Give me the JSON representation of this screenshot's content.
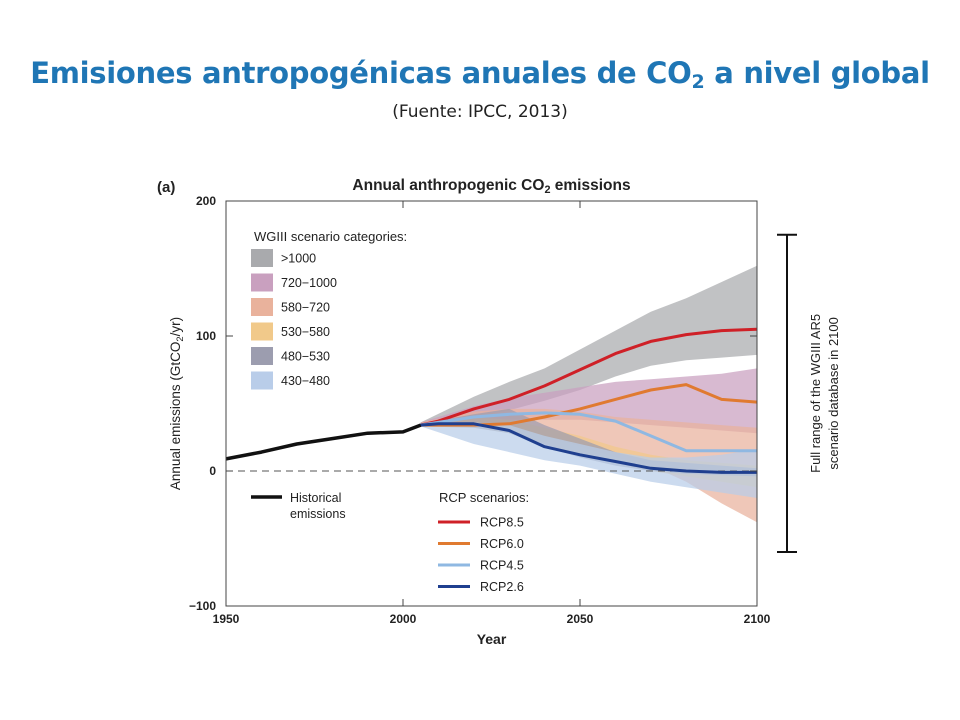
{
  "page": {
    "title_pre": "Emisiones antropogénicas anuales de CO",
    "title_sub": "2",
    "title_post": " a nivel global",
    "subtitle": "(Fuente: IPCC, 2013)"
  },
  "chart_data": {
    "type": "area",
    "panel_label": "(a)",
    "title_pre": "Annual anthropogenic CO",
    "title_sub": "2",
    "title_post": " emissions",
    "ylabel_pre": "Annual emissions (GtCO",
    "ylabel_sub": "2",
    "ylabel_post": "/yr)",
    "xlabel": "Year",
    "xlim": [
      1950,
      2100
    ],
    "ylim": [
      -100,
      200
    ],
    "x_ticks": [
      1950,
      2000,
      2050,
      2100
    ],
    "y_ticks": [
      -100,
      0,
      100,
      200
    ],
    "y_tick_labels": [
      "−100",
      "0",
      "100",
      "200"
    ],
    "zero_line": "dashed",
    "historical": {
      "name": "Historical emissions",
      "name_lines": [
        "Historical",
        "emissions"
      ],
      "color": "#111111",
      "x": [
        1950,
        1960,
        1970,
        1980,
        1990,
        2000,
        2005
      ],
      "y": [
        9,
        14,
        20,
        24,
        28,
        29,
        34
      ]
    },
    "categories_title": "WGIII scenario categories:",
    "categories": [
      {
        "name": ">1000",
        "color": "#a9aaad",
        "x": [
          2005,
          2020,
          2030,
          2040,
          2050,
          2060,
          2070,
          2080,
          2090,
          2100
        ],
        "upper": [
          36,
          55,
          66,
          76,
          90,
          104,
          118,
          128,
          140,
          152
        ],
        "lower": [
          34,
          40,
          45,
          52,
          60,
          70,
          78,
          82,
          84,
          86
        ]
      },
      {
        "name": "720−1000",
        "color": "#c9a0bf",
        "x": [
          2005,
          2020,
          2030,
          2040,
          2050,
          2060,
          2070,
          2080,
          2090,
          2100
        ],
        "upper": [
          36,
          48,
          54,
          58,
          62,
          66,
          68,
          70,
          72,
          76
        ],
        "lower": [
          34,
          38,
          38,
          38,
          38,
          36,
          34,
          32,
          30,
          28
        ]
      },
      {
        "name": "580−720",
        "color": "#e9b29c",
        "x": [
          2005,
          2020,
          2030,
          2040,
          2050,
          2060,
          2070,
          2080,
          2090,
          2100
        ],
        "upper": [
          36,
          44,
          46,
          46,
          44,
          40,
          38,
          36,
          34,
          32
        ],
        "lower": [
          33,
          34,
          32,
          26,
          18,
          10,
          4,
          -8,
          -24,
          -38
        ]
      },
      {
        "name": "530−580",
        "color": "#f1c98a",
        "x": [
          2005,
          2020,
          2030,
          2040,
          2050,
          2060,
          2070,
          2080,
          2090,
          2100
        ],
        "upper": [
          35,
          40,
          38,
          32,
          26,
          18,
          12,
          8,
          6,
          4
        ],
        "lower": [
          33,
          32,
          28,
          20,
          12,
          6,
          0,
          -4,
          -8,
          -12
        ]
      },
      {
        "name": "480−530",
        "color": "#9c9daf",
        "x": [
          2005,
          2020,
          2030,
          2040,
          2050,
          2060,
          2070,
          2080,
          2090,
          2100
        ],
        "upper": [
          35,
          42,
          46,
          34,
          24,
          14,
          8,
          6,
          4,
          2
        ],
        "lower": [
          33,
          32,
          28,
          18,
          10,
          4,
          0,
          -2,
          -3,
          -4
        ]
      },
      {
        "name": "430−480",
        "color": "#b9cde9",
        "x": [
          2005,
          2020,
          2030,
          2040,
          2050,
          2060,
          2070,
          2080,
          2090,
          2100
        ],
        "upper": [
          35,
          36,
          34,
          26,
          20,
          14,
          10,
          10,
          12,
          16
        ],
        "lower": [
          33,
          20,
          14,
          8,
          4,
          -2,
          -8,
          -12,
          -16,
          -20
        ]
      }
    ],
    "rcp_title": "RCP scenarios:",
    "rcp": [
      {
        "name": "RCP8.5",
        "color": "#cf2027",
        "x": [
          2005,
          2010,
          2020,
          2030,
          2040,
          2050,
          2060,
          2070,
          2080,
          2090,
          2100
        ],
        "y": [
          34,
          37,
          46,
          53,
          63,
          75,
          87,
          96,
          101,
          104,
          105
        ]
      },
      {
        "name": "RCP6.0",
        "color": "#e07a30",
        "x": [
          2005,
          2010,
          2020,
          2030,
          2040,
          2050,
          2060,
          2070,
          2080,
          2090,
          2100
        ],
        "y": [
          34,
          34,
          34,
          35,
          40,
          46,
          53,
          60,
          64,
          53,
          51
        ]
      },
      {
        "name": "RCP4.5",
        "color": "#8fb8e2",
        "x": [
          2005,
          2010,
          2020,
          2030,
          2040,
          2050,
          2060,
          2070,
          2080,
          2090,
          2100
        ],
        "y": [
          34,
          36,
          40,
          42,
          43,
          42,
          37,
          26,
          15,
          15,
          15
        ]
      },
      {
        "name": "RCP2.6",
        "color": "#1f3f8f",
        "x": [
          2005,
          2010,
          2020,
          2030,
          2040,
          2050,
          2060,
          2070,
          2080,
          2090,
          2100
        ],
        "y": [
          34,
          35,
          35,
          30,
          18,
          12,
          7,
          2,
          0,
          -1,
          -1
        ]
      }
    ],
    "range_bar": {
      "ymin": -60,
      "ymax": 175,
      "label_lines": [
        "Full range of the WGIII AR5",
        "scenario database in 2100"
      ]
    }
  }
}
